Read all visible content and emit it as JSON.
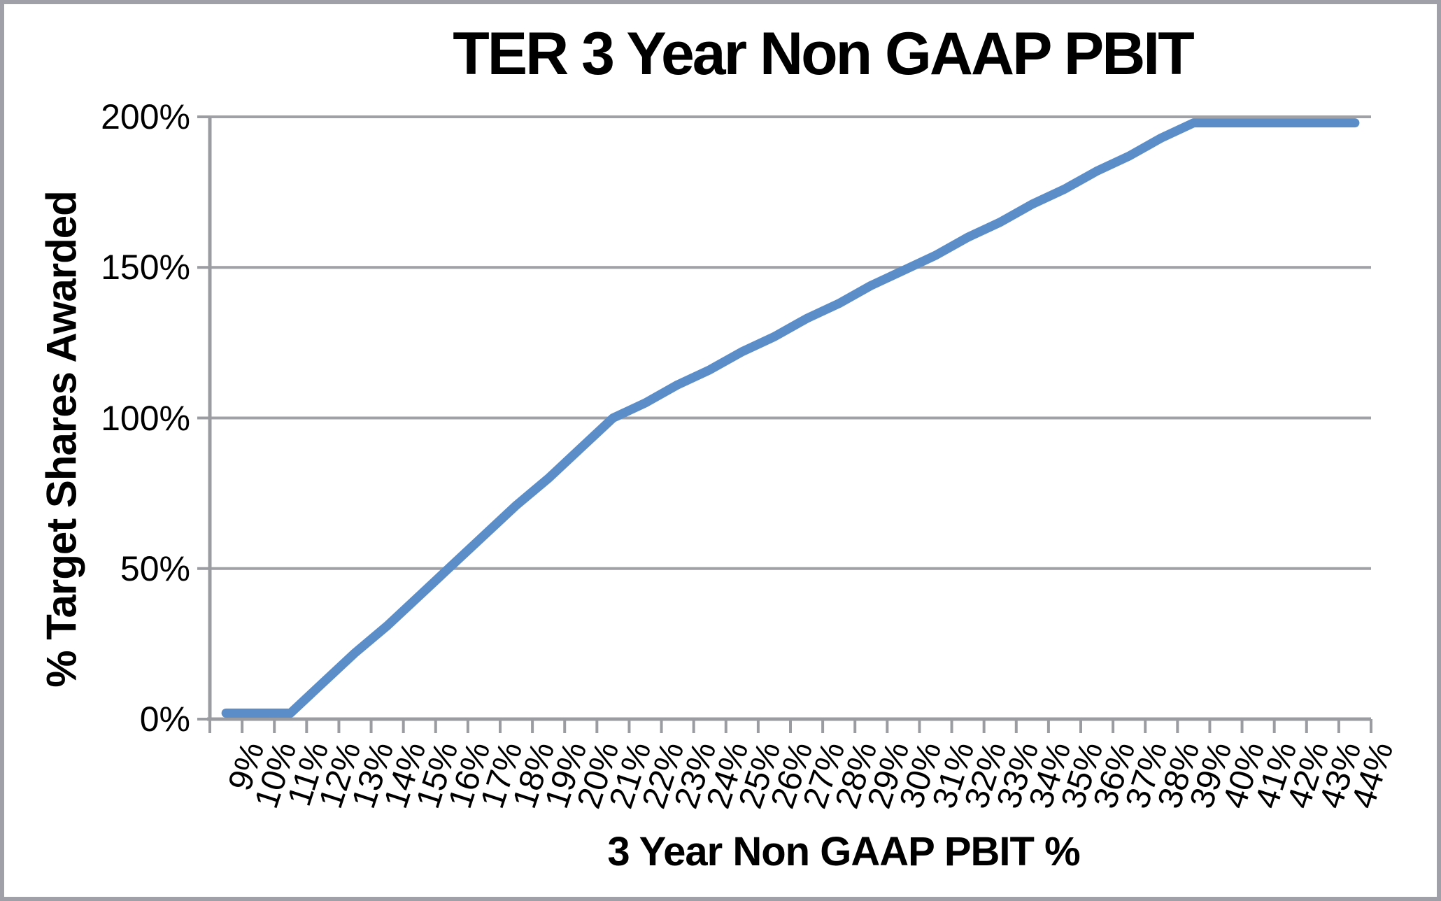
{
  "chart_data": {
    "type": "line",
    "title": "TER 3 Year Non GAAP PBIT",
    "xlabel": "3 Year Non GAAP PBIT %",
    "ylabel": "% Target Shares Awarded",
    "categories": [
      "9%",
      "10%",
      "11%",
      "12%",
      "13%",
      "14%",
      "15%",
      "16%",
      "17%",
      "18%",
      "19%",
      "20%",
      "21%",
      "22%",
      "23%",
      "24%",
      "25%",
      "26%",
      "27%",
      "28%",
      "29%",
      "30%",
      "31%",
      "32%",
      "33%",
      "34%",
      "35%",
      "36%",
      "37%",
      "38%",
      "39%",
      "40%",
      "41%",
      "42%",
      "43%",
      "44%"
    ],
    "series": [
      {
        "name": "% Target Shares Awarded",
        "values": [
          2,
          2,
          2,
          12,
          22,
          31,
          41,
          51,
          61,
          71,
          80,
          90,
          100,
          105,
          111,
          116,
          122,
          127,
          133,
          138,
          144,
          149,
          154,
          160,
          165,
          171,
          176,
          182,
          187,
          193,
          198,
          198,
          198,
          198,
          198,
          198
        ]
      }
    ],
    "y_ticks": [
      "200%",
      "150%",
      "100%",
      "50%",
      "0%"
    ],
    "y_tick_values": [
      200,
      150,
      100,
      50,
      0
    ],
    "ylim": [
      0,
      200
    ],
    "grid": "horizontal",
    "legend": "none",
    "annotations": [],
    "colors": {
      "series": "#5b8dc8",
      "gridline": "#a0a1a6",
      "axis": "#9b9ca1",
      "text": "#000000",
      "frame": "#a0a1a8",
      "background": "#ffffff"
    }
  }
}
